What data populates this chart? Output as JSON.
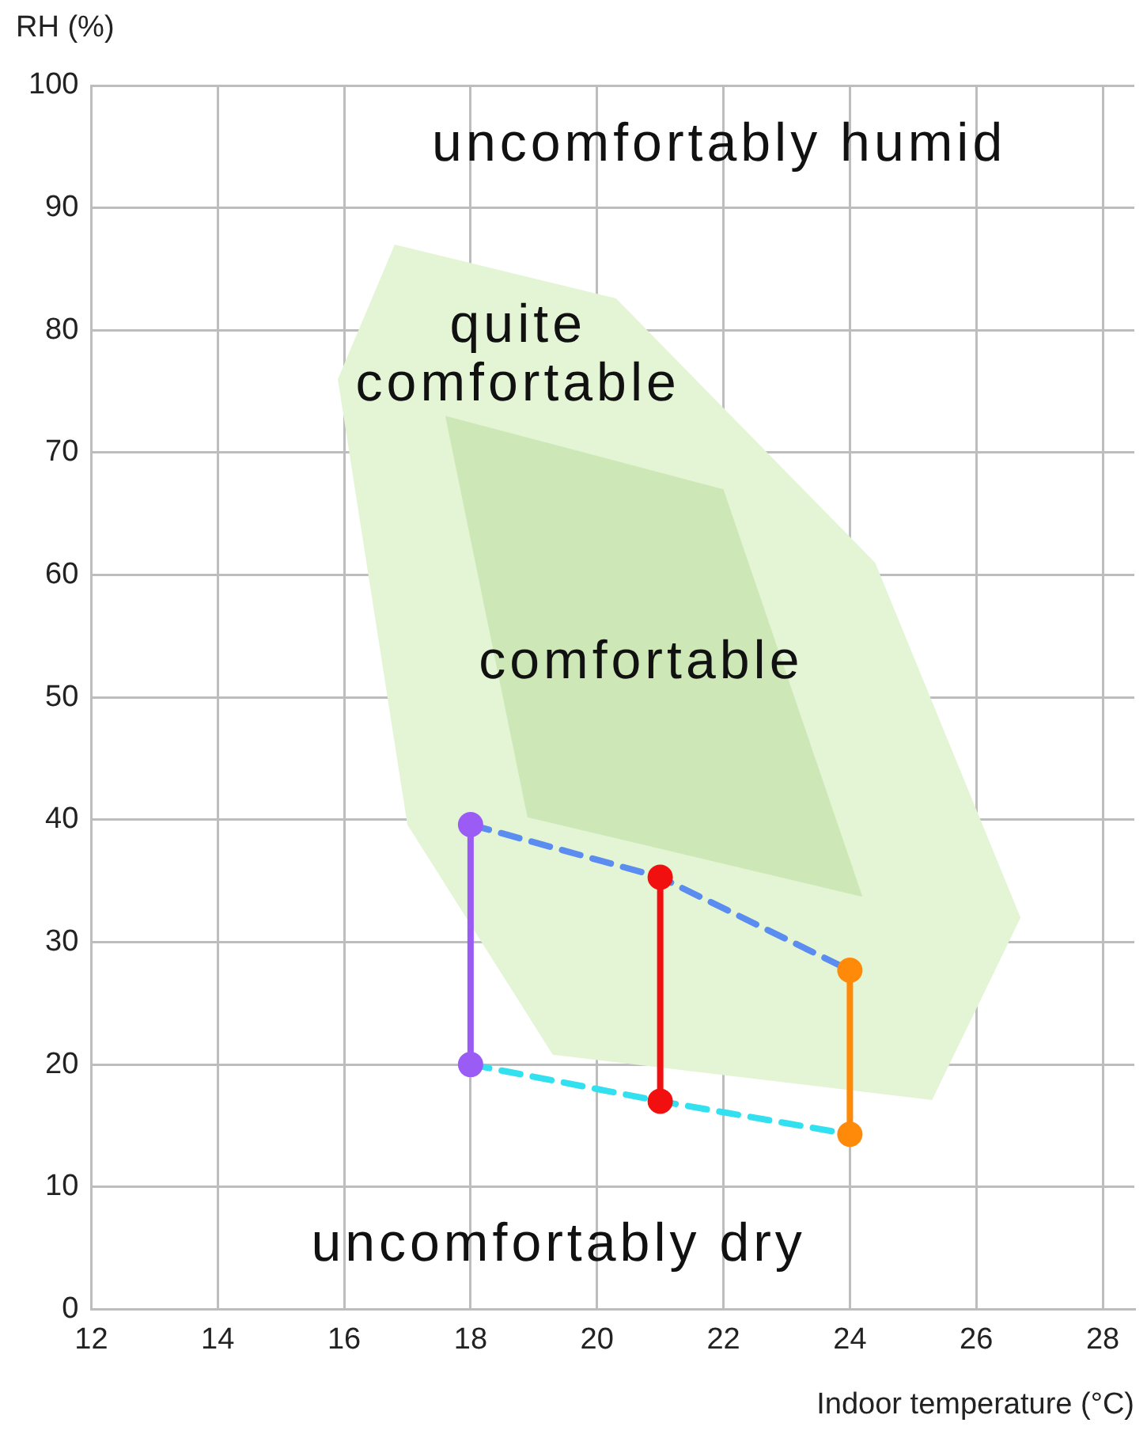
{
  "chart_data": {
    "type": "line",
    "xlabel": "Indoor temperature (°C)",
    "ylabel": "RH (%)",
    "xlim": [
      12,
      28.5
    ],
    "xticks": [
      12,
      14,
      16,
      18,
      20,
      22,
      24,
      26,
      28
    ],
    "ylim": [
      0,
      100
    ],
    "yticks": [
      0,
      10,
      20,
      30,
      40,
      50,
      60,
      70,
      80,
      90,
      100
    ],
    "grid": true,
    "legend": false,
    "series": [
      {
        "type": "area",
        "color": "#e3f5d5",
        "x": [
          16.8,
          20.3,
          24.4,
          26.7,
          25.3,
          19.3,
          17.0,
          15.9,
          16.8
        ],
        "values": [
          87,
          82.6,
          61,
          32,
          17.1,
          20.8,
          39.6,
          76,
          87
        ]
      },
      {
        "type": "area",
        "color": "#cde8b6",
        "x": [
          17.6,
          22.0,
          24.2,
          18.9,
          17.6
        ],
        "values": [
          73,
          67,
          33.7,
          40.2,
          73
        ]
      },
      {
        "color": "#5b8cf0",
        "x": [
          18,
          21,
          24
        ],
        "values": [
          39.6,
          35.3,
          27.7
        ],
        "line_style": "dashed",
        "marker": "none"
      },
      {
        "color": "#33e0f0",
        "x": [
          18,
          21,
          24
        ],
        "values": [
          20,
          17,
          14.3
        ],
        "line_style": "dashed",
        "marker": "none"
      },
      {
        "color": "#9a5cf5",
        "x": [
          18,
          18
        ],
        "values": [
          39.6,
          20
        ],
        "line_style": "solid",
        "marker": "circle"
      },
      {
        "color": "#f20f0f",
        "x": [
          21,
          21
        ],
        "values": [
          35.3,
          17
        ],
        "line_style": "solid",
        "marker": "circle"
      },
      {
        "color": "#ff8a0a",
        "x": [
          24,
          24
        ],
        "values": [
          27.7,
          14.3
        ],
        "line_style": "solid",
        "marker": "circle"
      }
    ],
    "annotations": [
      "uncomfortably humid",
      "quite\ncomfortable",
      "comfortable",
      "uncomfortably dry"
    ]
  }
}
